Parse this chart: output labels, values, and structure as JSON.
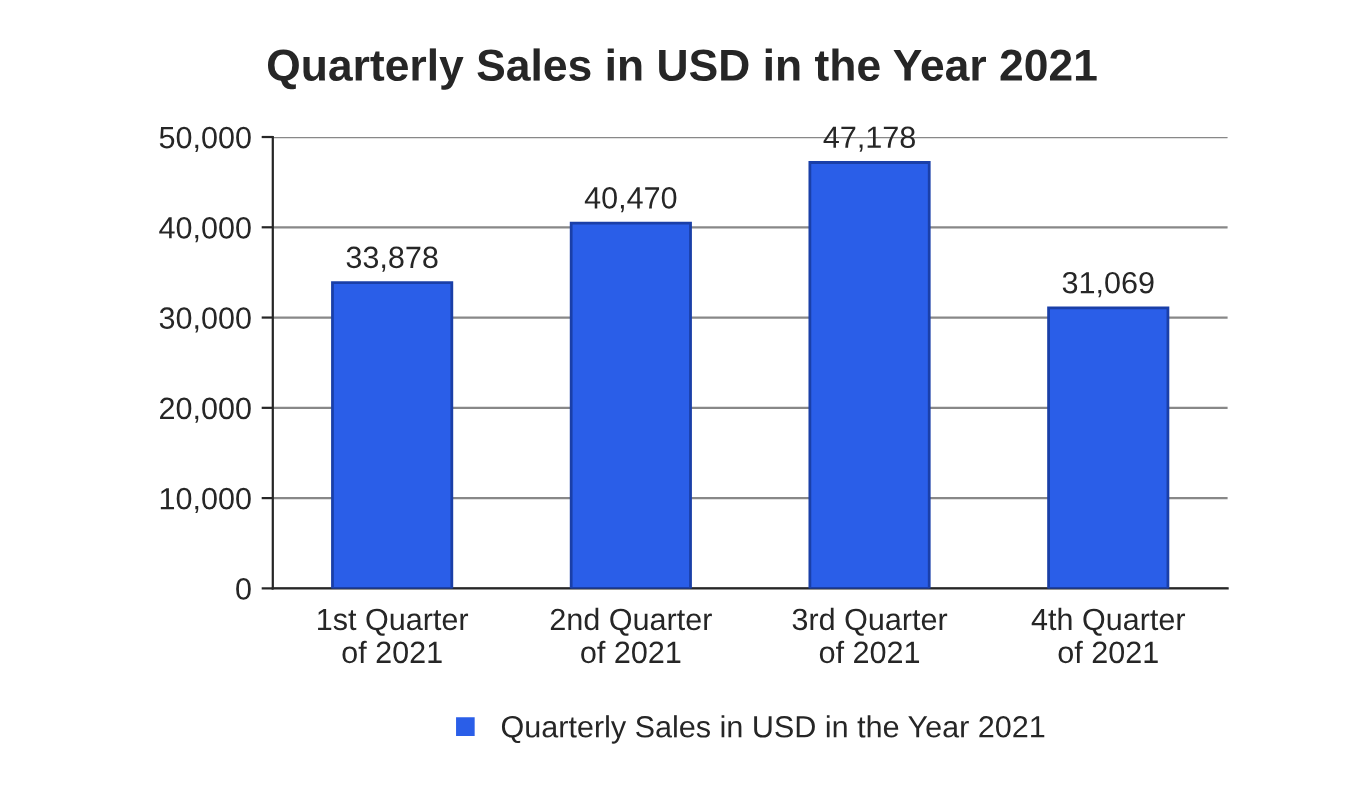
{
  "chart_data": {
    "type": "bar",
    "title": "Quarterly Sales in USD in the Year 2021",
    "categories": [
      "1st Quarter\nof 2021",
      "2nd Quarter\nof 2021",
      "3rd Quarter\nof 2021",
      "4th Quarter\nof 2021"
    ],
    "series": [
      {
        "name": "Quarterly Sales in USD in the Year 2021",
        "color": "#2a5ee8",
        "values": [
          33878,
          40470,
          47178,
          31069
        ],
        "value_labels": [
          "33,878",
          "40,470",
          "47,178",
          "31,069"
        ]
      }
    ],
    "ylim": [
      0,
      50000
    ],
    "yticks": [
      {
        "value": 0,
        "label": "0"
      },
      {
        "value": 10000,
        "label": "10,000"
      },
      {
        "value": 20000,
        "label": "20,000"
      },
      {
        "value": 30000,
        "label": "30,000"
      },
      {
        "value": 40000,
        "label": "40,000"
      },
      {
        "value": 50000,
        "label": "50,000"
      }
    ],
    "grid": "y",
    "legend": "bottom"
  }
}
